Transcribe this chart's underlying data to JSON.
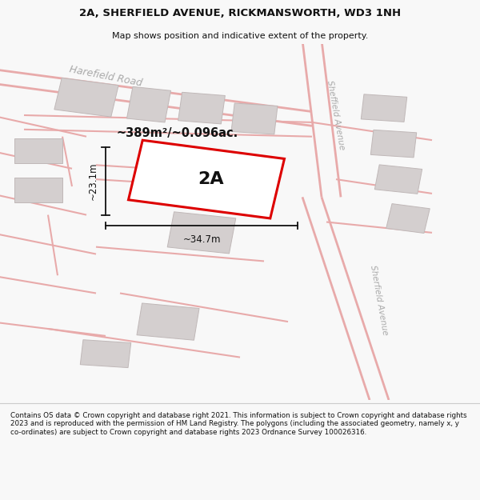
{
  "title_line1": "2A, SHERFIELD AVENUE, RICKMANSWORTH, WD3 1NH",
  "title_line2": "Map shows position and indicative extent of the property.",
  "footer_text": "Contains OS data © Crown copyright and database right 2021. This information is subject to Crown copyright and database rights 2023 and is reproduced with the permission of HM Land Registry. The polygons (including the associated geometry, namely x, y co-ordinates) are subject to Crown copyright and database rights 2023 Ordnance Survey 100026316.",
  "area_label": "~389m²/~0.096ac.",
  "label_2A": "2A",
  "dim_height": "~23.1m",
  "dim_width": "~34.7m",
  "road_label1": "Harefield Road",
  "road_label2a": "Sheffield Avenue",
  "road_label2b": "Sherfield Avenue",
  "background_color": "#f2f0f0",
  "map_bg": "#ede9e9",
  "title_bg": "#f8f8f8",
  "footer_bg": "#f8f8f8",
  "road_color": "#e8aaaa",
  "building_fill": "#d4cfcf",
  "building_edge": "#c0b8b8",
  "plot_outline_color": "#dd0000",
  "dim_line_color": "#111111",
  "text_color": "#111111",
  "road_text_color": "#aaaaaa"
}
